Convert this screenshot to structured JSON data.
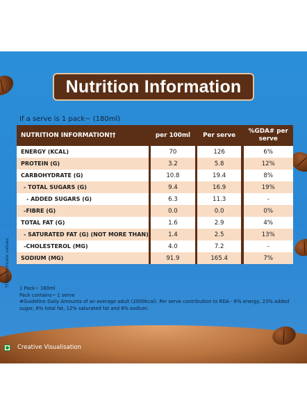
{
  "title": "Nutrition Information",
  "serve_note": "If a serve is 1 pack~ (180ml)",
  "side_note": "††Approximate values",
  "headers": {
    "nutrient": "NUTRITION INFORMATION††",
    "per100": "per 100ml",
    "perserve": "Per serve",
    "gda": "%GDA# per serve"
  },
  "rows": [
    {
      "name": "ENERGY (KCAL)",
      "per100": "70",
      "perserve": "126",
      "gda": "6%"
    },
    {
      "name": "PROTEIN (G)",
      "per100": "3.2",
      "perserve": "5.8",
      "gda": "12%"
    },
    {
      "name": "CARBOHYDRATE (G)",
      "per100": "10.8",
      "perserve": "19.4",
      "gda": "8%"
    },
    {
      "name": "- TOTAL SUGARS (G)",
      "per100": "9.4",
      "perserve": "16.9",
      "gda": "19%"
    },
    {
      "name": "- ADDED SUGARS (G)",
      "per100": "6.3",
      "perserve": "11.3",
      "gda": "-"
    },
    {
      "name": "-FIBRE (G)",
      "per100": "0.0",
      "perserve": "0.0",
      "gda": "0%"
    },
    {
      "name": "TOTAL FAT (G)",
      "per100": "1.6",
      "perserve": "2.9",
      "gda": "4%"
    },
    {
      "name": "- SATURATED FAT (G) (NOT MORE THAN)",
      "per100": "1.4",
      "perserve": "2.5",
      "gda": "13%"
    },
    {
      "name": "-CHOLESTEROL (MG)",
      "per100": "4.0",
      "perserve": "7.2",
      "gda": "-"
    },
    {
      "name": "SODIUM (MG)",
      "per100": "91.9",
      "perserve": "165.4",
      "gda": "7%"
    }
  ],
  "footer": {
    "line1": "1 Pack~ 180ml",
    "line2": "Pack contains~ 1 serve",
    "line3": "#Guideline Daily Amounts of an average adult (2000kcal). Per serve contribution to RDA - 6% energy, 23% added sugar, 6% total fat, 12% saturated fat and 8% sodium."
  },
  "creative": "Creative Visualisation",
  "colors": {
    "background_blue": "#2a86d3",
    "brown": "#5a2f16",
    "peach": "#f8dcc4",
    "veg_green": "#1c8a2b"
  },
  "icons": [
    "coffee-bean-icon",
    "veg-mark-icon"
  ]
}
